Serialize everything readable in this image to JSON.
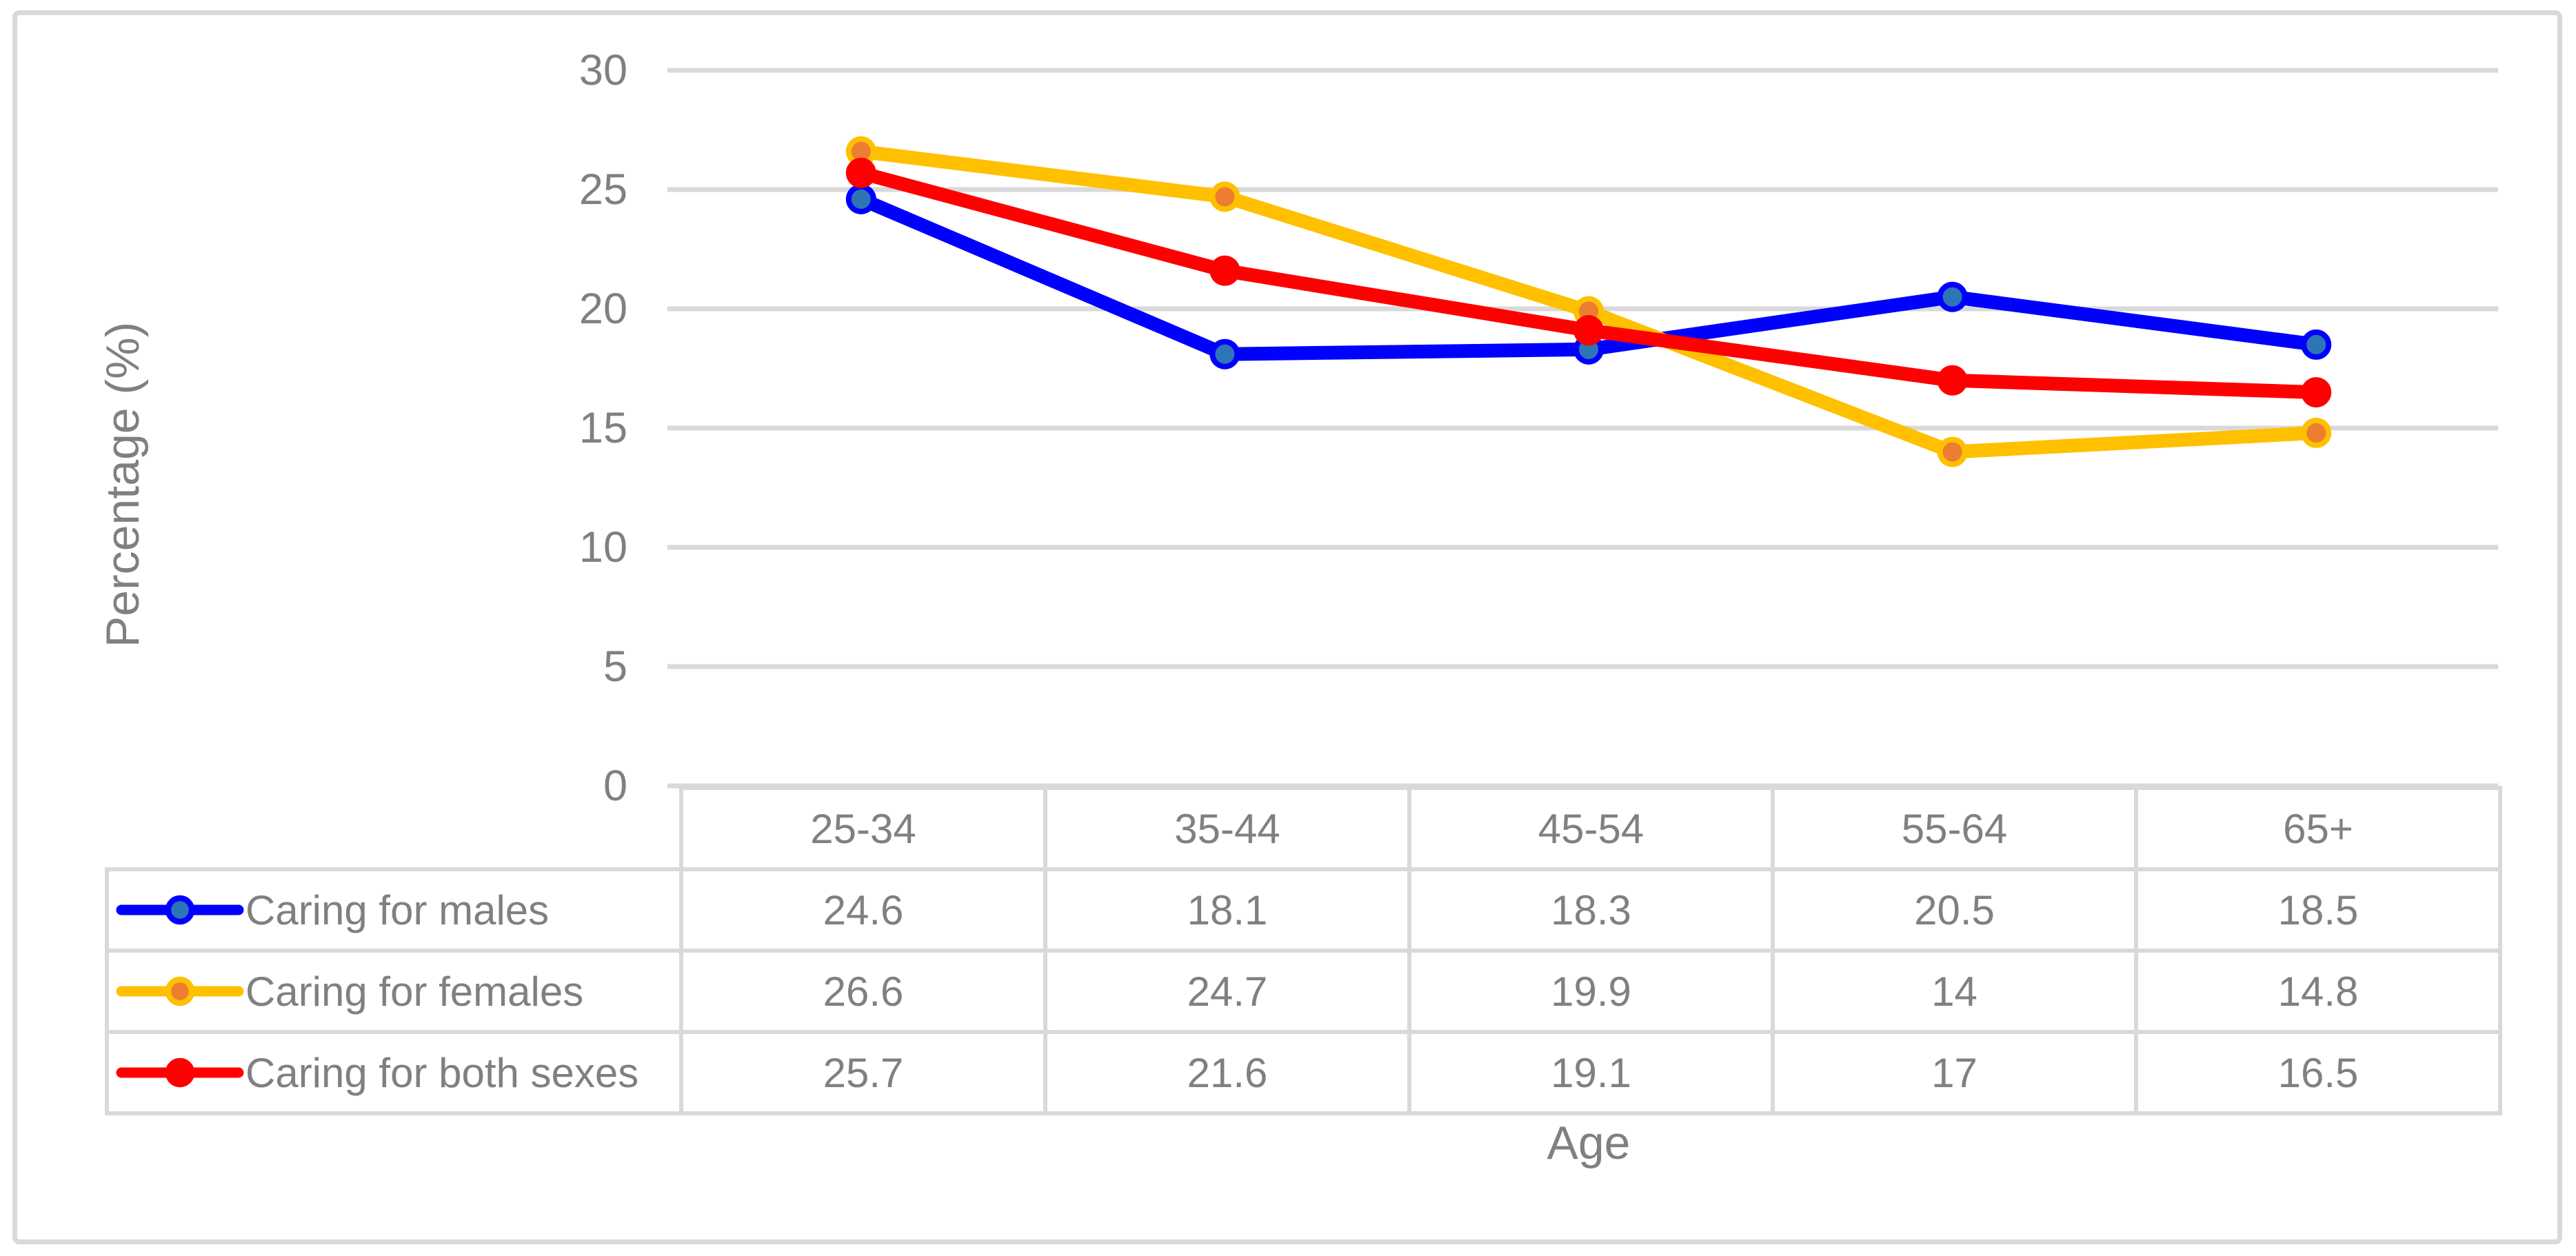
{
  "figure": {
    "y_axis_title": "Percentage (%)",
    "x_axis_title": "Age",
    "y_ticks": [
      "30",
      "25",
      "20",
      "15",
      "10",
      "5",
      "0"
    ],
    "colors": {
      "background": "#FFFFFF",
      "frame_border": "#D9D9D9",
      "gridline": "#D9D9D9",
      "table_border": "#D9D9D9",
      "text": "#808080"
    }
  },
  "chart_data": {
    "type": "line",
    "title": "",
    "xlabel": "Age",
    "ylabel": "Percentage (%)",
    "ylim": [
      0,
      30
    ],
    "y_tick_step": 5,
    "grid": true,
    "legend_position": "table-rows-left",
    "categories": [
      "25-34",
      "35-44",
      "45-54",
      "55-64",
      "65+"
    ],
    "series": [
      {
        "name": "Caring for males",
        "values": [
          24.6,
          18.1,
          18.3,
          20.5,
          18.5
        ],
        "line_color": "#0000FF",
        "marker_fill": "#2E75B6"
      },
      {
        "name": "Caring for females",
        "values": [
          26.6,
          24.7,
          19.9,
          14,
          14.8
        ],
        "line_color": "#FFC000",
        "marker_fill": "#ED7D31"
      },
      {
        "name": "Caring for both sexes",
        "values": [
          25.7,
          21.6,
          19.1,
          17,
          16.5
        ],
        "line_color": "#FF0000",
        "marker_fill": "#FF0000"
      }
    ]
  }
}
